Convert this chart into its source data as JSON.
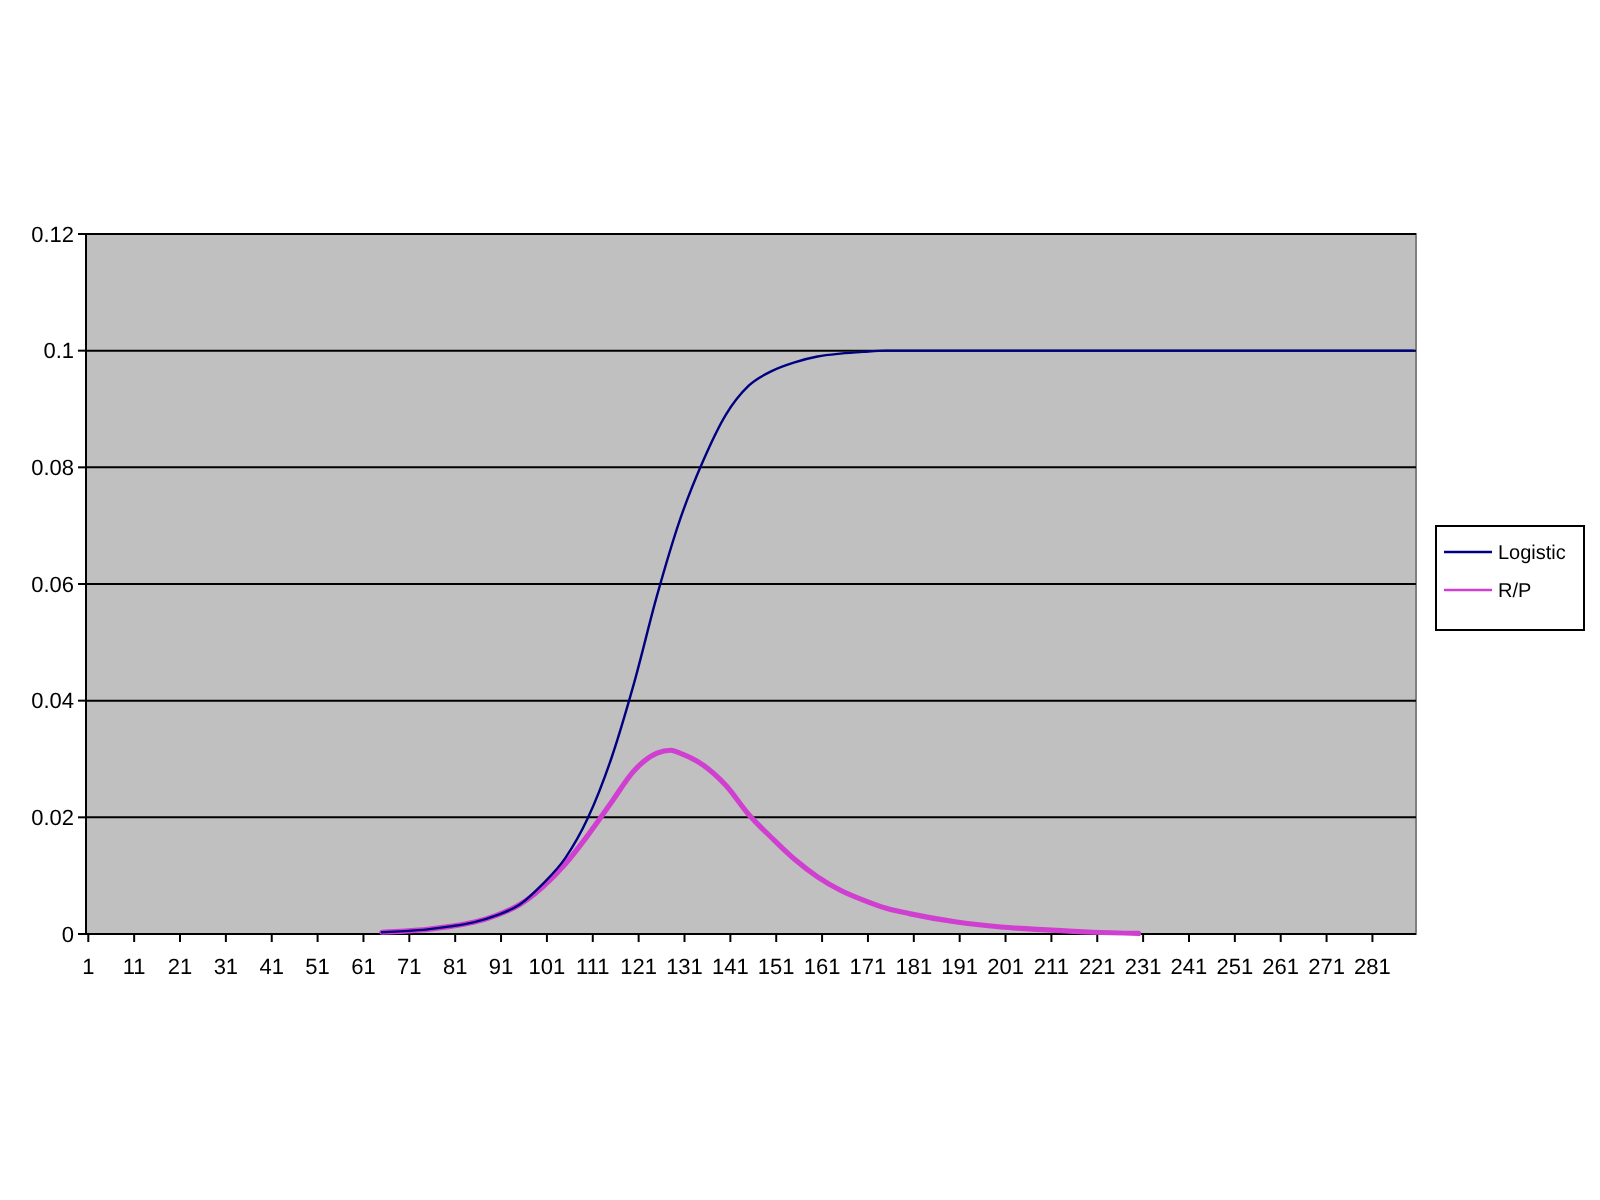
{
  "chart_data": {
    "type": "line",
    "xlim": [
      0.5,
      290.5
    ],
    "ylim": [
      0,
      0.12
    ],
    "xticks": [
      1,
      11,
      21,
      31,
      41,
      51,
      61,
      71,
      81,
      91,
      101,
      111,
      121,
      131,
      141,
      151,
      161,
      171,
      181,
      191,
      201,
      211,
      221,
      231,
      241,
      251,
      261,
      271,
      281
    ],
    "yticks": [
      0,
      0.02,
      0.04,
      0.06,
      0.08,
      0.1,
      0.12
    ],
    "grid": "y",
    "legend": "right",
    "series": [
      {
        "name": "Logistic",
        "color": "#000080",
        "x": [
          65,
          70,
          75,
          80,
          85,
          90,
          95,
          100,
          105,
          110,
          115,
          120,
          125,
          130,
          135,
          140,
          145,
          150,
          155,
          160,
          165,
          170,
          175,
          290
        ],
        "values": [
          0.0003,
          0.0005,
          0.0008,
          0.0013,
          0.002,
          0.0032,
          0.005,
          0.0085,
          0.013,
          0.02,
          0.03,
          0.043,
          0.058,
          0.071,
          0.081,
          0.089,
          0.094,
          0.0965,
          0.098,
          0.099,
          0.0995,
          0.0998,
          0.1,
          0.1
        ]
      },
      {
        "name": "R/P",
        "color": "#d040d0",
        "x": [
          65,
          70,
          75,
          80,
          85,
          90,
          95,
          100,
          105,
          110,
          115,
          120,
          125,
          128,
          130,
          135,
          140,
          145,
          150,
          155,
          160,
          165,
          170,
          175,
          180,
          190,
          200,
          210,
          220,
          230
        ],
        "values": [
          0.0003,
          0.0005,
          0.0008,
          0.0013,
          0.002,
          0.0032,
          0.005,
          0.008,
          0.012,
          0.017,
          0.0225,
          0.028,
          0.031,
          0.0315,
          0.031,
          0.029,
          0.0255,
          0.0205,
          0.0165,
          0.0128,
          0.0098,
          0.0075,
          0.0058,
          0.0044,
          0.0035,
          0.0021,
          0.0012,
          0.0007,
          0.0003,
          0.0001
        ]
      }
    ]
  }
}
